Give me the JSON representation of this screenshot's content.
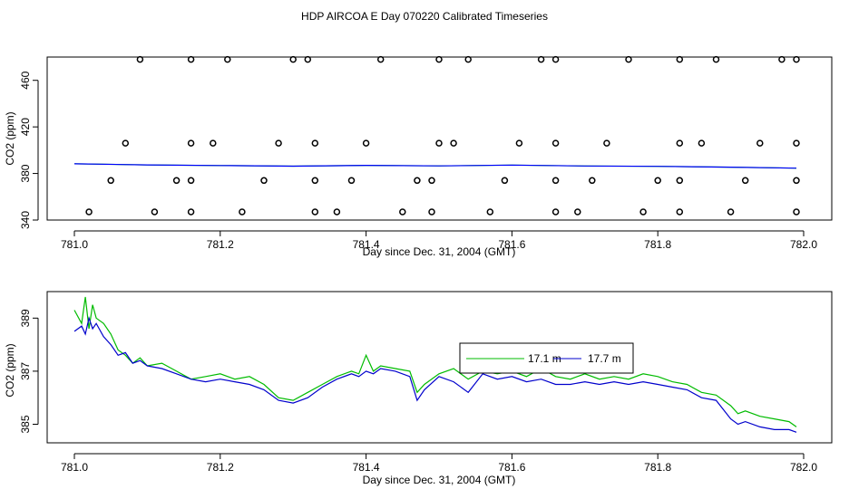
{
  "page": {
    "title": "HDP AIRCOA E  Day 070220  Calibrated Timeseries"
  },
  "chart_data": [
    {
      "type": "scatter",
      "xlabel": "Day since Dec. 31, 2004 (GMT)",
      "ylabel": "CO2 (ppm)",
      "xlim": [
        781.0,
        782.0
      ],
      "ylim": [
        340,
        480
      ],
      "x_ticks": [
        "781.0",
        "781.2",
        "781.4",
        "781.6",
        "781.8",
        "782.0"
      ],
      "y_ticks": [
        "340",
        "380",
        "420",
        "460"
      ],
      "grid": false,
      "line_color": "#0000ff",
      "green_color": "#00bb00",
      "marker_style": "open-circle",
      "line_series": {
        "x": [
          781.0,
          781.1,
          781.2,
          781.3,
          781.4,
          781.5,
          781.6,
          781.7,
          781.8,
          781.9,
          781.99
        ],
        "y": [
          388.3,
          387.4,
          386.8,
          386.3,
          387.0,
          386.5,
          387.2,
          386.4,
          386.1,
          385.4,
          384.6
        ]
      },
      "points": {
        "x": [
          781.09,
          781.16,
          781.21,
          781.3,
          781.32,
          781.42,
          781.5,
          781.54,
          781.64,
          781.66,
          781.76,
          781.83,
          781.88,
          781.97,
          781.99,
          781.07,
          781.16,
          781.19,
          781.28,
          781.33,
          781.4,
          781.5,
          781.52,
          781.61,
          781.66,
          781.73,
          781.83,
          781.86,
          781.94,
          781.99,
          781.05,
          781.14,
          781.16,
          781.26,
          781.33,
          781.38,
          781.47,
          781.49,
          781.59,
          781.66,
          781.71,
          781.8,
          781.83,
          781.92,
          781.99,
          781.02,
          781.11,
          781.16,
          781.23,
          781.33,
          781.36,
          781.45,
          781.49,
          781.57,
          781.66,
          781.69,
          781.78,
          781.83,
          781.9,
          781.99
        ],
        "y": [
          478,
          478,
          478,
          478,
          478,
          478,
          478,
          478,
          478,
          478,
          478,
          478,
          478,
          478,
          478,
          406,
          406,
          406,
          406,
          406,
          406,
          406,
          406,
          406,
          406,
          406,
          406,
          406,
          406,
          406,
          374,
          374,
          374,
          374,
          374,
          374,
          374,
          374,
          374,
          374,
          374,
          374,
          374,
          374,
          374,
          347,
          347,
          347,
          347,
          347,
          347,
          347,
          347,
          347,
          347,
          347,
          347,
          347,
          347,
          347
        ]
      }
    },
    {
      "type": "line",
      "xlabel": "Day since Dec. 31, 2004 (GMT)",
      "ylabel": "CO2 (ppm)",
      "xlim": [
        781.0,
        782.0
      ],
      "ylim": [
        384.3,
        390.0
      ],
      "x_ticks": [
        "781.0",
        "781.2",
        "781.4",
        "781.6",
        "781.8",
        "782.0"
      ],
      "y_ticks": [
        "385",
        "387",
        "389"
      ],
      "grid": false,
      "legend_placement": "top-center",
      "series": [
        {
          "name": "17.1 m",
          "color": "#00bb00",
          "x": [
            781.0,
            781.01,
            781.015,
            781.02,
            781.025,
            781.03,
            781.04,
            781.05,
            781.06,
            781.07,
            781.08,
            781.09,
            781.1,
            781.12,
            781.14,
            781.16,
            781.18,
            781.2,
            781.22,
            781.24,
            781.26,
            781.28,
            781.3,
            781.32,
            781.34,
            781.36,
            781.38,
            781.39,
            781.4,
            781.41,
            781.42,
            781.44,
            781.46,
            781.47,
            781.48,
            781.5,
            781.52,
            781.54,
            781.56,
            781.58,
            781.6,
            781.62,
            781.64,
            781.66,
            781.68,
            781.7,
            781.72,
            781.74,
            781.76,
            781.78,
            781.8,
            781.82,
            781.84,
            781.86,
            781.88,
            781.9,
            781.91,
            781.92,
            781.94,
            781.96,
            781.98,
            781.99
          ],
          "y": [
            389.3,
            388.8,
            389.8,
            388.6,
            389.5,
            389.0,
            388.8,
            388.4,
            387.8,
            387.6,
            387.3,
            387.5,
            387.2,
            387.3,
            387.0,
            386.7,
            386.8,
            386.9,
            386.7,
            386.8,
            386.5,
            386.0,
            385.9,
            386.2,
            386.5,
            386.8,
            387.0,
            386.9,
            387.6,
            387.0,
            387.2,
            387.1,
            387.0,
            386.2,
            386.5,
            386.9,
            387.1,
            386.7,
            387.0,
            386.9,
            387.0,
            386.8,
            387.1,
            386.8,
            386.7,
            386.9,
            386.7,
            386.8,
            386.7,
            386.9,
            386.8,
            386.6,
            386.5,
            386.2,
            386.1,
            385.7,
            385.4,
            385.5,
            385.3,
            385.2,
            385.1,
            384.9
          ]
        },
        {
          "name": "17.7 m",
          "color": "#0000cc",
          "x": [
            781.0,
            781.01,
            781.015,
            781.02,
            781.025,
            781.03,
            781.04,
            781.05,
            781.06,
            781.07,
            781.08,
            781.09,
            781.1,
            781.12,
            781.14,
            781.16,
            781.18,
            781.2,
            781.22,
            781.24,
            781.26,
            781.28,
            781.3,
            781.32,
            781.34,
            781.36,
            781.38,
            781.39,
            781.4,
            781.41,
            781.42,
            781.44,
            781.46,
            781.47,
            781.48,
            781.5,
            781.52,
            781.54,
            781.56,
            781.58,
            781.6,
            781.62,
            781.64,
            781.66,
            781.68,
            781.7,
            781.72,
            781.74,
            781.76,
            781.78,
            781.8,
            781.82,
            781.84,
            781.86,
            781.88,
            781.9,
            781.91,
            781.92,
            781.94,
            781.96,
            781.98,
            781.99
          ],
          "y": [
            388.5,
            388.7,
            388.4,
            389.0,
            388.6,
            388.8,
            388.3,
            388.0,
            387.6,
            387.7,
            387.3,
            387.4,
            387.2,
            387.1,
            386.9,
            386.7,
            386.6,
            386.7,
            386.6,
            386.5,
            386.3,
            385.9,
            385.8,
            386.0,
            386.4,
            386.7,
            386.9,
            386.8,
            387.0,
            386.9,
            387.1,
            387.0,
            386.8,
            385.9,
            386.3,
            386.8,
            386.6,
            386.2,
            386.9,
            386.7,
            386.8,
            386.6,
            386.7,
            386.5,
            386.5,
            386.6,
            386.5,
            386.6,
            386.5,
            386.6,
            386.5,
            386.4,
            386.3,
            386.0,
            385.9,
            385.2,
            385.0,
            385.1,
            384.9,
            384.8,
            384.8,
            384.7
          ]
        }
      ]
    }
  ]
}
